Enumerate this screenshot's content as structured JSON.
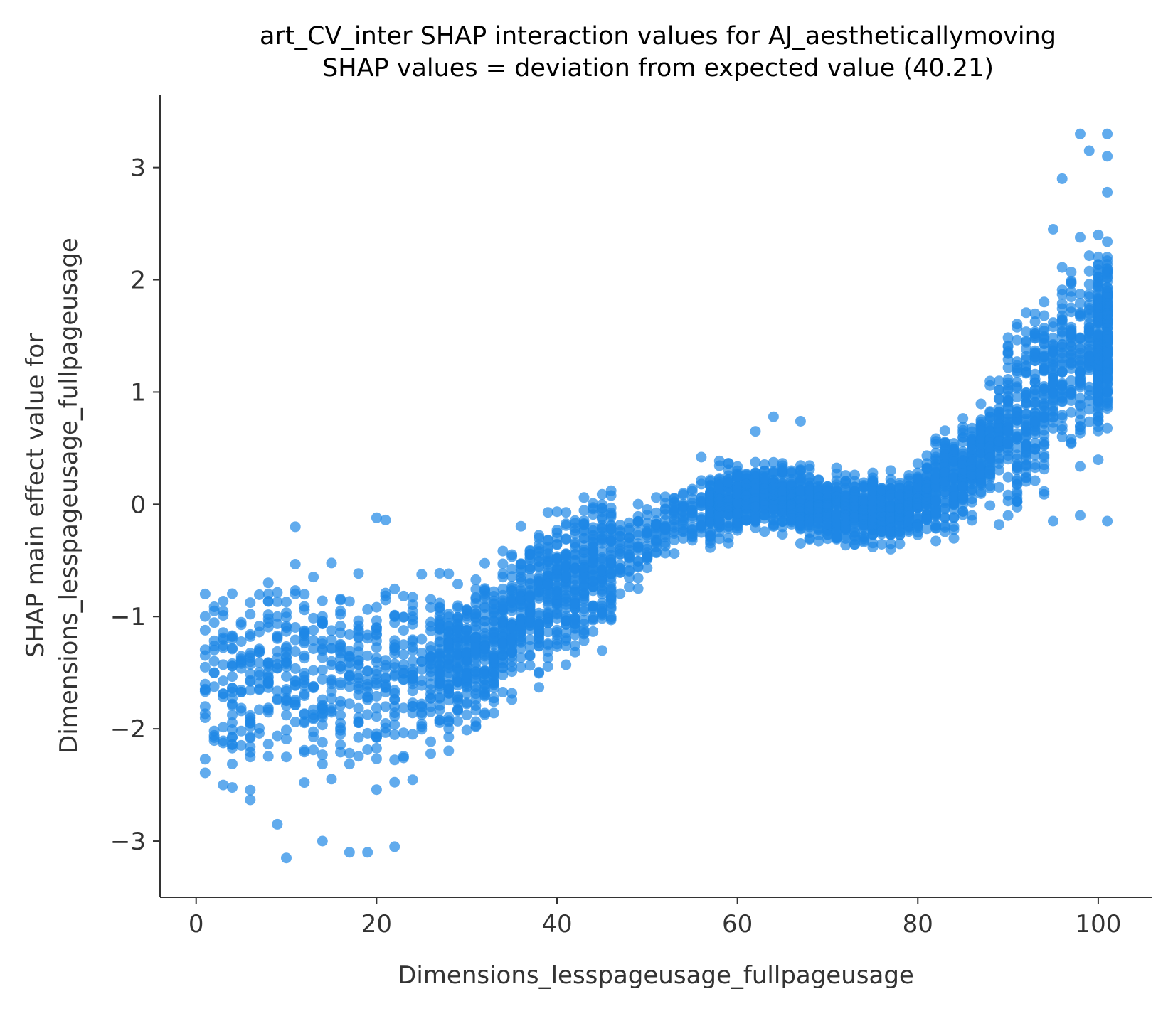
{
  "chart_data": {
    "type": "scatter",
    "title": "art_CV_inter SHAP interaction values for AJ_aestheticallymoving",
    "subtitle": "SHAP values = deviation from expected value (40.21)",
    "xlabel": "Dimensions_lesspageusage_fullpageusage",
    "ylabel_lines": [
      "SHAP main effect value for",
      "Dimensions_lesspageusage_fullpageusage"
    ],
    "xlim": [
      -4,
      106
    ],
    "ylim": [
      -3.5,
      3.65
    ],
    "x_ticks": [
      0,
      20,
      40,
      60,
      80,
      100
    ],
    "y_ticks": [
      -3,
      -2,
      -1,
      0,
      1,
      2,
      3
    ],
    "x_tick_labels": [
      "0",
      "20",
      "40",
      "60",
      "80",
      "100"
    ],
    "y_tick_labels": [
      "−3",
      "−2",
      "−1",
      "0",
      "1",
      "2",
      "3"
    ],
    "grid": false,
    "marker_color": "#1e88e5",
    "marker_alpha": 0.7,
    "trend_anchors": [
      {
        "x": 1,
        "y": -1.6
      },
      {
        "x": 10,
        "y": -1.5
      },
      {
        "x": 20,
        "y": -1.55
      },
      {
        "x": 30,
        "y": -1.35
      },
      {
        "x": 40,
        "y": -0.75
      },
      {
        "x": 47,
        "y": -0.45
      },
      {
        "x": 55,
        "y": -0.05
      },
      {
        "x": 63,
        "y": 0.1
      },
      {
        "x": 70,
        "y": -0.05
      },
      {
        "x": 78,
        "y": -0.05
      },
      {
        "x": 85,
        "y": 0.3
      },
      {
        "x": 92,
        "y": 0.9
      },
      {
        "x": 101,
        "y": 1.5
      }
    ],
    "notable_points": [
      {
        "x": 98,
        "y": 3.3
      },
      {
        "x": 101,
        "y": 3.3
      },
      {
        "x": 101,
        "y": 3.1
      },
      {
        "x": 99,
        "y": 3.15
      },
      {
        "x": 96,
        "y": 2.9
      },
      {
        "x": 101,
        "y": 2.78
      },
      {
        "x": 95,
        "y": 2.45
      },
      {
        "x": 11,
        "y": -0.2
      },
      {
        "x": 20,
        "y": -0.12
      },
      {
        "x": 21,
        "y": -0.14
      },
      {
        "x": 10,
        "y": -3.15
      },
      {
        "x": 17,
        "y": -3.1
      },
      {
        "x": 19,
        "y": -3.1
      },
      {
        "x": 22,
        "y": -3.05
      },
      {
        "x": 3,
        "y": -2.5
      },
      {
        "x": 1,
        "y": -2.27
      },
      {
        "x": 9,
        "y": -2.85
      },
      {
        "x": 14,
        "y": -3.0
      },
      {
        "x": 49,
        "y": -0.75
      },
      {
        "x": 95,
        "y": -0.15
      },
      {
        "x": 101,
        "y": -0.15
      },
      {
        "x": 89,
        "y": -0.18
      },
      {
        "x": 98,
        "y": -0.1
      },
      {
        "x": 64,
        "y": 0.78
      },
      {
        "x": 67,
        "y": 0.74
      },
      {
        "x": 62,
        "y": 0.65
      },
      {
        "x": 56,
        "y": 0.42
      }
    ]
  }
}
